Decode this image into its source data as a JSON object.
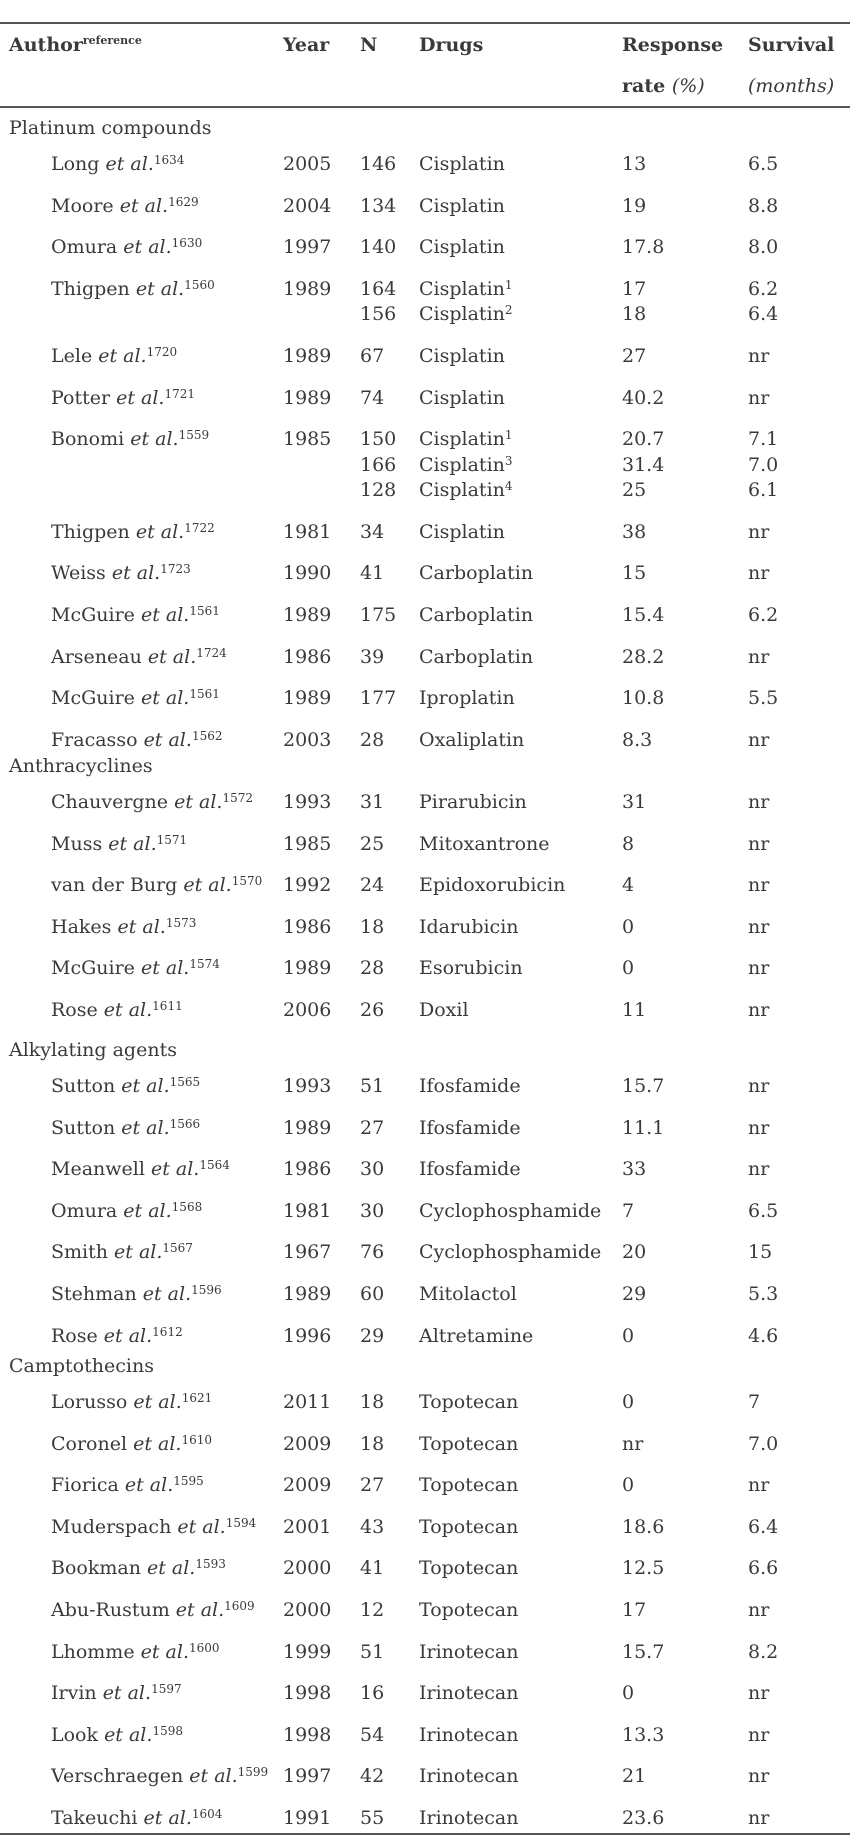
{
  "header": {
    "author": "Author",
    "author_sup": "reference",
    "year": "Year",
    "n": "N",
    "drugs": "Drugs",
    "response_line1": "Response",
    "response_line2_bold": "rate",
    "response_line2_italic": "(%)",
    "survival_line1": "Survival",
    "survival_line2": "(months)"
  },
  "sections": [
    {
      "title": "Platinum compounds",
      "rows": [
        {
          "author": "Long",
          "ref": "1634",
          "year": "2005",
          "n": [
            "146"
          ],
          "drugs": [
            [
              "Cisplatin",
              ""
            ]
          ],
          "response": [
            "13"
          ],
          "survival": [
            "6.5"
          ]
        },
        {
          "author": "Moore",
          "ref": "1629",
          "year": "2004",
          "n": [
            "134"
          ],
          "drugs": [
            [
              "Cisplatin",
              ""
            ]
          ],
          "response": [
            "19"
          ],
          "survival": [
            "8.8"
          ]
        },
        {
          "author": "Omura",
          "ref": "1630",
          "year": "1997",
          "n": [
            "140"
          ],
          "drugs": [
            [
              "Cisplatin",
              ""
            ]
          ],
          "response": [
            "17.8"
          ],
          "survival": [
            "8.0"
          ]
        },
        {
          "author": "Thigpen",
          "ref": "1560",
          "year": "1989",
          "n": [
            "164",
            "156"
          ],
          "drugs": [
            [
              "Cisplatin",
              "1"
            ],
            [
              "Cisplatin",
              "2"
            ]
          ],
          "response": [
            "17",
            "18"
          ],
          "survival": [
            "6.2",
            "6.4"
          ]
        },
        {
          "author": "Lele",
          "ref": "1720",
          "year": "1989",
          "n": [
            "67"
          ],
          "drugs": [
            [
              "Cisplatin",
              ""
            ]
          ],
          "response": [
            "27"
          ],
          "survival": [
            "nr"
          ]
        },
        {
          "author": "Potter",
          "ref": "1721",
          "year": "1989",
          "n": [
            "74"
          ],
          "drugs": [
            [
              "Cisplatin",
              ""
            ]
          ],
          "response": [
            "40.2"
          ],
          "survival": [
            "nr"
          ]
        },
        {
          "author": "Bonomi",
          "ref": "1559",
          "year": "1985",
          "n": [
            "150",
            "166",
            "128"
          ],
          "drugs": [
            [
              "Cisplatin",
              "1"
            ],
            [
              "Cisplatin",
              "3"
            ],
            [
              "Cisplatin",
              "4"
            ]
          ],
          "response": [
            "20.7",
            "31.4",
            "25"
          ],
          "survival": [
            "7.1",
            "7.0",
            "6.1"
          ]
        },
        {
          "author": "Thigpen",
          "ref": "1722",
          "year": "1981",
          "n": [
            "34"
          ],
          "drugs": [
            [
              "Cisplatin",
              ""
            ]
          ],
          "response": [
            "38"
          ],
          "survival": [
            "nr"
          ]
        },
        {
          "author": "Weiss",
          "ref": "1723",
          "year": "1990",
          "n": [
            "41"
          ],
          "drugs": [
            [
              "Carboplatin",
              ""
            ]
          ],
          "response": [
            "15"
          ],
          "survival": [
            "nr"
          ]
        },
        {
          "author": "McGuire",
          "ref": "1561",
          "year": "1989",
          "n": [
            "175"
          ],
          "drugs": [
            [
              "Carboplatin",
              ""
            ]
          ],
          "response": [
            "15.4"
          ],
          "survival": [
            "6.2"
          ]
        },
        {
          "author": "Arseneau",
          "ref": "1724",
          "year": "1986",
          "n": [
            "39"
          ],
          "drugs": [
            [
              "Carboplatin",
              ""
            ]
          ],
          "response": [
            "28.2"
          ],
          "survival": [
            "nr"
          ]
        },
        {
          "author": "McGuire",
          "ref": "1561",
          "year": "1989",
          "n": [
            "177"
          ],
          "drugs": [
            [
              "Iproplatin",
              ""
            ]
          ],
          "response": [
            "10.8"
          ],
          "survival": [
            "5.5"
          ]
        },
        {
          "author": "Fracasso",
          "ref": "1562",
          "year": "2003",
          "n": [
            "28"
          ],
          "drugs": [
            [
              "Oxaliplatin",
              ""
            ]
          ],
          "response": [
            "8.3"
          ],
          "survival": [
            "nr"
          ]
        }
      ]
    },
    {
      "title": "Anthracyclines",
      "rows": [
        {
          "author": "Chauvergne",
          "ref": "1572",
          "year": "1993",
          "n": [
            "31"
          ],
          "drugs": [
            [
              "Pirarubicin",
              ""
            ]
          ],
          "response": [
            "31"
          ],
          "survival": [
            "nr"
          ]
        },
        {
          "author": "Muss",
          "ref": "1571",
          "year": "1985",
          "n": [
            "25"
          ],
          "drugs": [
            [
              "Mitoxantrone",
              ""
            ]
          ],
          "response": [
            "8"
          ],
          "survival": [
            "nr"
          ]
        },
        {
          "author": "van der Burg",
          "ref": "1570",
          "year": "1992",
          "n": [
            "24"
          ],
          "drugs": [
            [
              "Epidoxorubicin",
              ""
            ]
          ],
          "response": [
            "4"
          ],
          "survival": [
            "nr"
          ]
        },
        {
          "author": "Hakes",
          "ref": "1573",
          "year": "1986",
          "n": [
            "18"
          ],
          "drugs": [
            [
              "Idarubicin",
              ""
            ]
          ],
          "response": [
            "0"
          ],
          "survival": [
            "nr"
          ]
        },
        {
          "author": "McGuire",
          "ref": "1574",
          "year": "1989",
          "n": [
            "28"
          ],
          "drugs": [
            [
              "Esorubicin",
              ""
            ]
          ],
          "response": [
            "0"
          ],
          "survival": [
            "nr"
          ]
        },
        {
          "author": "Rose",
          "ref": "1611",
          "year": "2006",
          "n": [
            "26"
          ],
          "drugs": [
            [
              "Doxil",
              ""
            ]
          ],
          "response": [
            "11"
          ],
          "survival": [
            "nr"
          ]
        }
      ]
    },
    {
      "title": "Alkylating agents",
      "rows": [
        {
          "author": "Sutton",
          "ref": "1565",
          "year": "1993",
          "n": [
            "51"
          ],
          "drugs": [
            [
              "Ifosfamide",
              ""
            ]
          ],
          "response": [
            "15.7"
          ],
          "survival": [
            "nr"
          ]
        },
        {
          "author": "Sutton",
          "ref": "1566",
          "year": "1989",
          "n": [
            "27"
          ],
          "drugs": [
            [
              "Ifosfamide",
              ""
            ]
          ],
          "response": [
            "11.1"
          ],
          "survival": [
            "nr"
          ]
        },
        {
          "author": "Meanwell",
          "ref": "1564",
          "year": "1986",
          "n": [
            "30"
          ],
          "drugs": [
            [
              "Ifosfamide",
              ""
            ]
          ],
          "response": [
            "33"
          ],
          "survival": [
            "nr"
          ]
        },
        {
          "author": "Omura",
          "ref": "1568",
          "year": "1981",
          "n": [
            "30"
          ],
          "drugs": [
            [
              "Cyclophosphamide",
              ""
            ]
          ],
          "response": [
            "7"
          ],
          "survival": [
            "6.5"
          ]
        },
        {
          "author": "Smith",
          "ref": "1567",
          "year": "1967",
          "n": [
            "76"
          ],
          "drugs": [
            [
              "Cyclophosphamide",
              ""
            ]
          ],
          "response": [
            "20"
          ],
          "survival": [
            "15"
          ]
        },
        {
          "author": "Stehman",
          "ref": "1596",
          "year": "1989",
          "n": [
            "60"
          ],
          "drugs": [
            [
              "Mitolactol",
              ""
            ]
          ],
          "response": [
            "29"
          ],
          "survival": [
            "5.3"
          ]
        },
        {
          "author": "Rose",
          "ref": "1612",
          "year": "1996",
          "n": [
            "29"
          ],
          "drugs": [
            [
              "Altretamine",
              ""
            ]
          ],
          "response": [
            "0"
          ],
          "survival": [
            "4.6"
          ]
        }
      ]
    },
    {
      "title": "Camptothecins",
      "rows": [
        {
          "author": "Lorusso",
          "ref": "1621",
          "year": "2011",
          "n": [
            "18"
          ],
          "drugs": [
            [
              "Topotecan",
              ""
            ]
          ],
          "response": [
            "0"
          ],
          "survival": [
            "7"
          ]
        },
        {
          "author": "Coronel",
          "ref": "1610",
          "year": "2009",
          "n": [
            "18"
          ],
          "drugs": [
            [
              "Topotecan",
              ""
            ]
          ],
          "response": [
            "nr"
          ],
          "survival": [
            "7.0"
          ]
        },
        {
          "author": "Fiorica",
          "ref": "1595",
          "year": "2009",
          "n": [
            "27"
          ],
          "drugs": [
            [
              "Topotecan",
              ""
            ]
          ],
          "response": [
            "0"
          ],
          "survival": [
            "nr"
          ]
        },
        {
          "author": "Muderspach",
          "ref": "1594",
          "year": "2001",
          "n": [
            "43"
          ],
          "drugs": [
            [
              "Topotecan",
              ""
            ]
          ],
          "response": [
            "18.6"
          ],
          "survival": [
            "6.4"
          ]
        },
        {
          "author": "Bookman",
          "ref": "1593",
          "year": "2000",
          "n": [
            "41"
          ],
          "drugs": [
            [
              "Topotecan",
              ""
            ]
          ],
          "response": [
            "12.5"
          ],
          "survival": [
            "6.6"
          ]
        },
        {
          "author": "Abu-Rustum",
          "ref": "1609",
          "year": "2000",
          "n": [
            "12"
          ],
          "drugs": [
            [
              "Topotecan",
              ""
            ]
          ],
          "response": [
            "17"
          ],
          "survival": [
            "nr"
          ]
        },
        {
          "author": "Lhomme",
          "ref": "1600",
          "year": "1999",
          "n": [
            "51"
          ],
          "drugs": [
            [
              "Irinotecan",
              ""
            ]
          ],
          "response": [
            "15.7"
          ],
          "survival": [
            "8.2"
          ]
        },
        {
          "author": "Irvin",
          "ref": "1597",
          "year": "1998",
          "n": [
            "16"
          ],
          "drugs": [
            [
              "Irinotecan",
              ""
            ]
          ],
          "response": [
            "0"
          ],
          "survival": [
            "nr"
          ]
        },
        {
          "author": "Look",
          "ref": "1598",
          "year": "1998",
          "n": [
            "54"
          ],
          "drugs": [
            [
              "Irinotecan",
              ""
            ]
          ],
          "response": [
            "13.3"
          ],
          "survival": [
            "nr"
          ]
        },
        {
          "author": "Verschraegen",
          "ref": "1599",
          "year": "1997",
          "n": [
            "42"
          ],
          "drugs": [
            [
              "Irinotecan",
              ""
            ]
          ],
          "response": [
            "21"
          ],
          "survival": [
            "nr"
          ]
        },
        {
          "author": "Takeuchi",
          "ref": "1604",
          "year": "1991",
          "n": [
            "55"
          ],
          "drugs": [
            [
              "Irinotecan",
              ""
            ]
          ],
          "response": [
            "23.6"
          ],
          "survival": [
            "nr"
          ]
        }
      ]
    }
  ],
  "etal_text": "et al."
}
